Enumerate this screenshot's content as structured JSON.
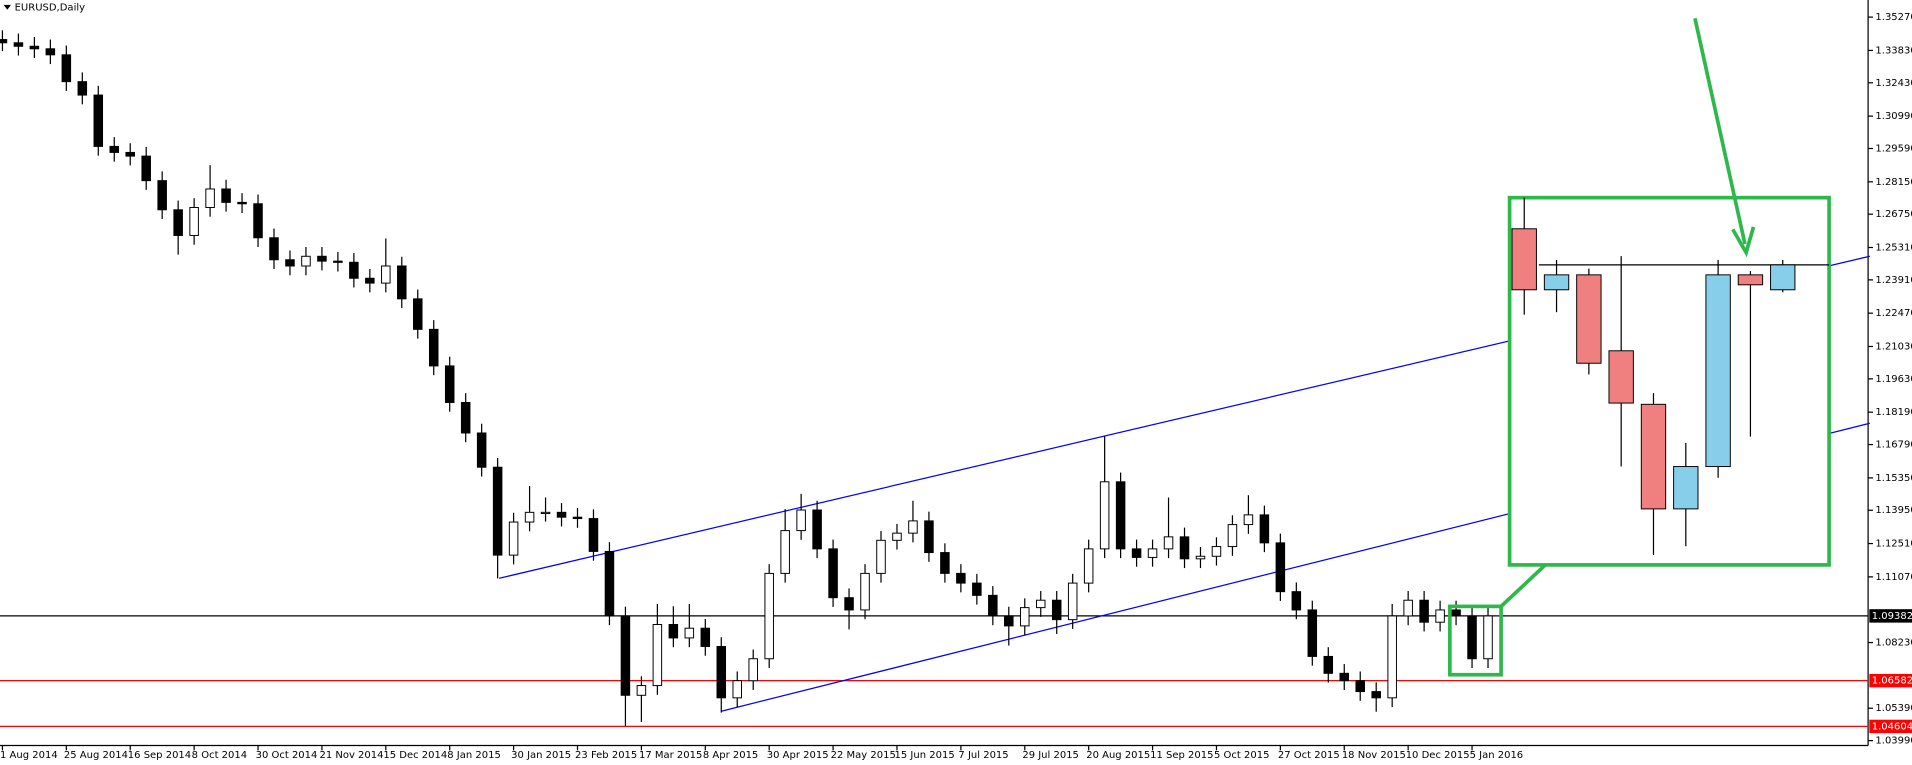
{
  "chart_data": {
    "type": "candlestick",
    "title": "EURUSD,Daily",
    "categories": [
      "1 Aug 2014",
      null,
      null,
      null,
      "25 Aug 2014",
      null,
      null,
      null,
      "16 Sep 2014",
      null,
      null,
      null,
      "8 Oct 2014",
      null,
      null,
      null,
      "30 Oct 2014",
      null,
      null,
      null,
      "21 Nov 2014",
      null,
      null,
      null,
      "15 Dec 2014",
      null,
      null,
      null,
      "8 Jan 2015",
      null,
      null,
      null,
      "30 Jan 2015",
      null,
      null,
      null,
      "23 Feb 2015",
      null,
      null,
      null,
      "17 Mar 2015",
      null,
      null,
      null,
      "8 Apr 2015",
      null,
      null,
      null,
      "30 Apr 2015",
      null,
      null,
      null,
      "22 May 2015",
      null,
      null,
      null,
      "15 Jun 2015",
      null,
      null,
      null,
      "7 Jul 2015",
      null,
      null,
      null,
      "29 Jul 2015",
      null,
      null,
      null,
      "20 Aug 2015",
      null,
      null,
      null,
      "11 Sep 2015",
      null,
      null,
      null,
      "5 Oct 2015",
      null,
      null,
      null,
      "27 Oct 2015",
      null,
      null,
      null,
      "18 Nov 2015",
      null,
      null,
      null,
      "10 Dec 2015",
      null,
      null,
      null,
      "5 Jan 2016",
      null
    ],
    "open": [
      1.343,
      1.3416,
      1.3401,
      1.339,
      1.3364,
      1.3248,
      1.319,
      1.2968,
      1.2942,
      1.2926,
      1.282,
      1.2694,
      1.2583,
      1.2704,
      1.2784,
      1.2726,
      1.272,
      1.2573,
      1.2478,
      1.2451,
      1.2493,
      1.2472,
      1.2467,
      1.2398,
      1.2377,
      1.2451,
      1.2309,
      1.2177,
      1.2019,
      1.1861,
      1.1729,
      1.1581,
      1.1201,
      1.1344,
      1.1386,
      1.1386,
      1.1365,
      1.1359,
      1.1217,
      1.0938,
      1.0595,
      1.0637,
      1.0901,
      1.0843,
      1.0885,
      1.0806,
      1.0584,
      1.0658,
      1.0753,
      1.1122,
      1.1307,
      1.1396,
      1.1228,
      1.1017,
      1.0964,
      1.1122,
      1.1265,
      1.1296,
      1.1349,
      1.1212,
      1.1122,
      1.108,
      1.1027,
      1.0938,
      1.0895,
      1.0974,
      1.1006,
      1.0922,
      1.108,
      1.1228,
      1.1518,
      1.1228,
      1.1191,
      1.1228,
      1.128,
      1.1185,
      1.1196,
      1.1238,
      1.1333,
      1.1375,
      1.1254,
      1.1043,
      1.0964,
      1.0763,
      1.069,
      1.0658,
      1.0611,
      1.0584,
      1.0938,
      1.1006,
      1.0911,
      1.0964,
      1.0938,
      1.0753
    ],
    "high": [
      1.347,
      1.3456,
      1.3441,
      1.343,
      1.3404,
      1.3288,
      1.323,
      1.3008,
      1.2982,
      1.2966,
      1.286,
      1.2734,
      1.2744,
      1.2887,
      1.2824,
      1.2766,
      1.276,
      1.2613,
      1.2518,
      1.2533,
      1.2533,
      1.2512,
      1.2507,
      1.2438,
      1.257,
      1.2491,
      1.2349,
      1.2217,
      1.2059,
      1.1901,
      1.1769,
      1.1621,
      1.1384,
      1.15,
      1.145,
      1.1426,
      1.1405,
      1.1399,
      1.1257,
      1.0978,
      1.0677,
      1.099,
      1.098,
      1.099,
      1.0925,
      1.0846,
      1.0698,
      1.0793,
      1.1162,
      1.14,
      1.1466,
      1.1436,
      1.1268,
      1.1057,
      1.1162,
      1.1305,
      1.1336,
      1.1436,
      1.1389,
      1.1252,
      1.1162,
      1.112,
      1.1067,
      1.0978,
      1.1014,
      1.1046,
      1.1046,
      1.112,
      1.1268,
      1.1714,
      1.1558,
      1.1268,
      1.1268,
      1.145,
      1.132,
      1.1236,
      1.1278,
      1.1373,
      1.146,
      1.1415,
      1.1294,
      1.1083,
      1.1004,
      1.0803,
      1.073,
      1.0698,
      1.0651,
      1.099,
      1.1046,
      1.1046,
      1.1004,
      1.1004,
      1.0978,
      1.0978
    ],
    "low": [
      1.338,
      1.3361,
      1.335,
      1.3324,
      1.3208,
      1.315,
      1.2928,
      1.2902,
      1.2886,
      1.278,
      1.2654,
      1.25,
      1.2543,
      1.2664,
      1.2686,
      1.268,
      1.2533,
      1.2438,
      1.2411,
      1.2411,
      1.2432,
      1.2427,
      1.2358,
      1.2337,
      1.2337,
      1.2269,
      1.2137,
      1.1979,
      1.1821,
      1.1689,
      1.1541,
      1.11,
      1.1161,
      1.1304,
      1.1346,
      1.1325,
      1.1319,
      1.1177,
      1.0898,
      1.0462,
      1.048,
      1.0597,
      1.0803,
      1.0803,
      1.0766,
      1.052,
      1.0544,
      1.0618,
      1.0713,
      1.1082,
      1.1267,
      1.1188,
      1.0977,
      1.088,
      1.0924,
      1.1082,
      1.1225,
      1.1256,
      1.1172,
      1.1082,
      1.104,
      1.0987,
      1.0898,
      1.081,
      1.0855,
      1.0934,
      1.086,
      1.0882,
      1.104,
      1.1188,
      1.1188,
      1.1151,
      1.1151,
      1.1188,
      1.1145,
      1.1145,
      1.1156,
      1.1198,
      1.1293,
      1.1214,
      1.1003,
      1.0924,
      1.0723,
      1.065,
      1.0618,
      1.0571,
      1.0524,
      1.0544,
      1.0898,
      1.0871,
      1.0871,
      1.0898,
      1.0713,
      1.0713
    ],
    "close": [
      1.3416,
      1.3401,
      1.339,
      1.3364,
      1.3248,
      1.319,
      1.2968,
      1.2942,
      1.2926,
      1.282,
      1.2694,
      1.2583,
      1.2704,
      1.2784,
      1.2726,
      1.272,
      1.2573,
      1.2478,
      1.2451,
      1.2493,
      1.2472,
      1.2467,
      1.2398,
      1.2377,
      1.2451,
      1.2309,
      1.2177,
      1.2019,
      1.1861,
      1.1729,
      1.1581,
      1.1201,
      1.1344,
      1.1386,
      1.1386,
      1.1365,
      1.1359,
      1.1217,
      1.0938,
      1.0595,
      1.0637,
      1.0901,
      1.0843,
      1.0885,
      1.0806,
      1.0584,
      1.0658,
      1.0753,
      1.1122,
      1.1307,
      1.1396,
      1.1228,
      1.1017,
      1.0964,
      1.1122,
      1.1265,
      1.1296,
      1.1349,
      1.1212,
      1.1122,
      1.108,
      1.1027,
      1.0938,
      1.0895,
      1.0974,
      1.1006,
      1.0922,
      1.108,
      1.1228,
      1.1518,
      1.1228,
      1.1191,
      1.1228,
      1.128,
      1.1185,
      1.1196,
      1.1238,
      1.1333,
      1.1375,
      1.1254,
      1.1043,
      1.0964,
      1.0763,
      1.069,
      1.0658,
      1.0611,
      1.0584,
      1.0938,
      1.1006,
      1.0911,
      1.0964,
      1.0938,
      1.0753,
      1.0938
    ],
    "up_color": "#ffffff",
    "down_color": "#000000",
    "ylim": [
      1.0378,
      1.3601
    ],
    "yticks": [
      {
        "value": 1.3527,
        "label": "1.35270"
      },
      {
        "value": 1.3383,
        "label": "1.33830"
      },
      {
        "value": 1.3243,
        "label": "1.32430"
      },
      {
        "value": 1.3099,
        "label": "1.30990"
      },
      {
        "value": 1.2959,
        "label": "1.29590"
      },
      {
        "value": 1.2815,
        "label": "1.28150"
      },
      {
        "value": 1.2675,
        "label": "1.26750"
      },
      {
        "value": 1.2531,
        "label": "1.25310"
      },
      {
        "value": 1.2391,
        "label": "1.23910"
      },
      {
        "value": 1.2247,
        "label": "1.22470"
      },
      {
        "value": 1.2103,
        "label": "1.21030"
      },
      {
        "value": 1.1963,
        "label": "1.19630"
      },
      {
        "value": 1.1819,
        "label": "1.18190"
      },
      {
        "value": 1.1679,
        "label": "1.16790"
      },
      {
        "value": 1.1535,
        "label": "1.15350"
      },
      {
        "value": 1.1395,
        "label": "1.13950"
      },
      {
        "value": 1.1251,
        "label": "1.12510"
      },
      {
        "value": 1.1107,
        "label": "1.11070"
      },
      {
        "value": 1.0823,
        "label": "1.08230"
      },
      {
        "value": 1.0539,
        "label": "1.05390"
      },
      {
        "value": 1.0399,
        "label": "1.03990"
      }
    ],
    "trendlines": [
      {
        "color": "#0000ff",
        "from": [
          31.1,
          1.1101
        ],
        "to": [
          116.9,
          1.2493
        ]
      },
      {
        "color": "#0000ff",
        "from": [
          45.0,
          1.0526
        ],
        "to": [
          116.9,
          1.1771
        ]
      }
    ],
    "hlines": [
      {
        "value": 1.09382,
        "color": "#000000"
      },
      {
        "value": 1.06582,
        "color": "#ff0000"
      },
      {
        "value": 1.04604,
        "color": "#ff0000"
      }
    ],
    "inset": {
      "ylim": [
        1.0685,
        1.098
      ],
      "open": [
        1.0955,
        1.0906,
        1.0918,
        1.0857,
        1.0814,
        1.073,
        1.0764,
        1.0918,
        1.0906
      ],
      "high": [
        1.098,
        1.093,
        1.0923,
        1.0933,
        1.0823,
        1.0783,
        1.093,
        1.0921,
        1.093
      ],
      "low": [
        1.0886,
        1.0888,
        1.0838,
        1.0764,
        1.0693,
        1.07,
        1.0755,
        1.0788,
        1.0904
      ],
      "close": [
        1.0906,
        1.0918,
        1.0847,
        1.0815,
        1.073,
        1.0764,
        1.0918,
        1.091,
        1.0926
      ],
      "up_color": "#87ceeb",
      "down_color": "#f08080",
      "hline": 1.0926
    }
  }
}
